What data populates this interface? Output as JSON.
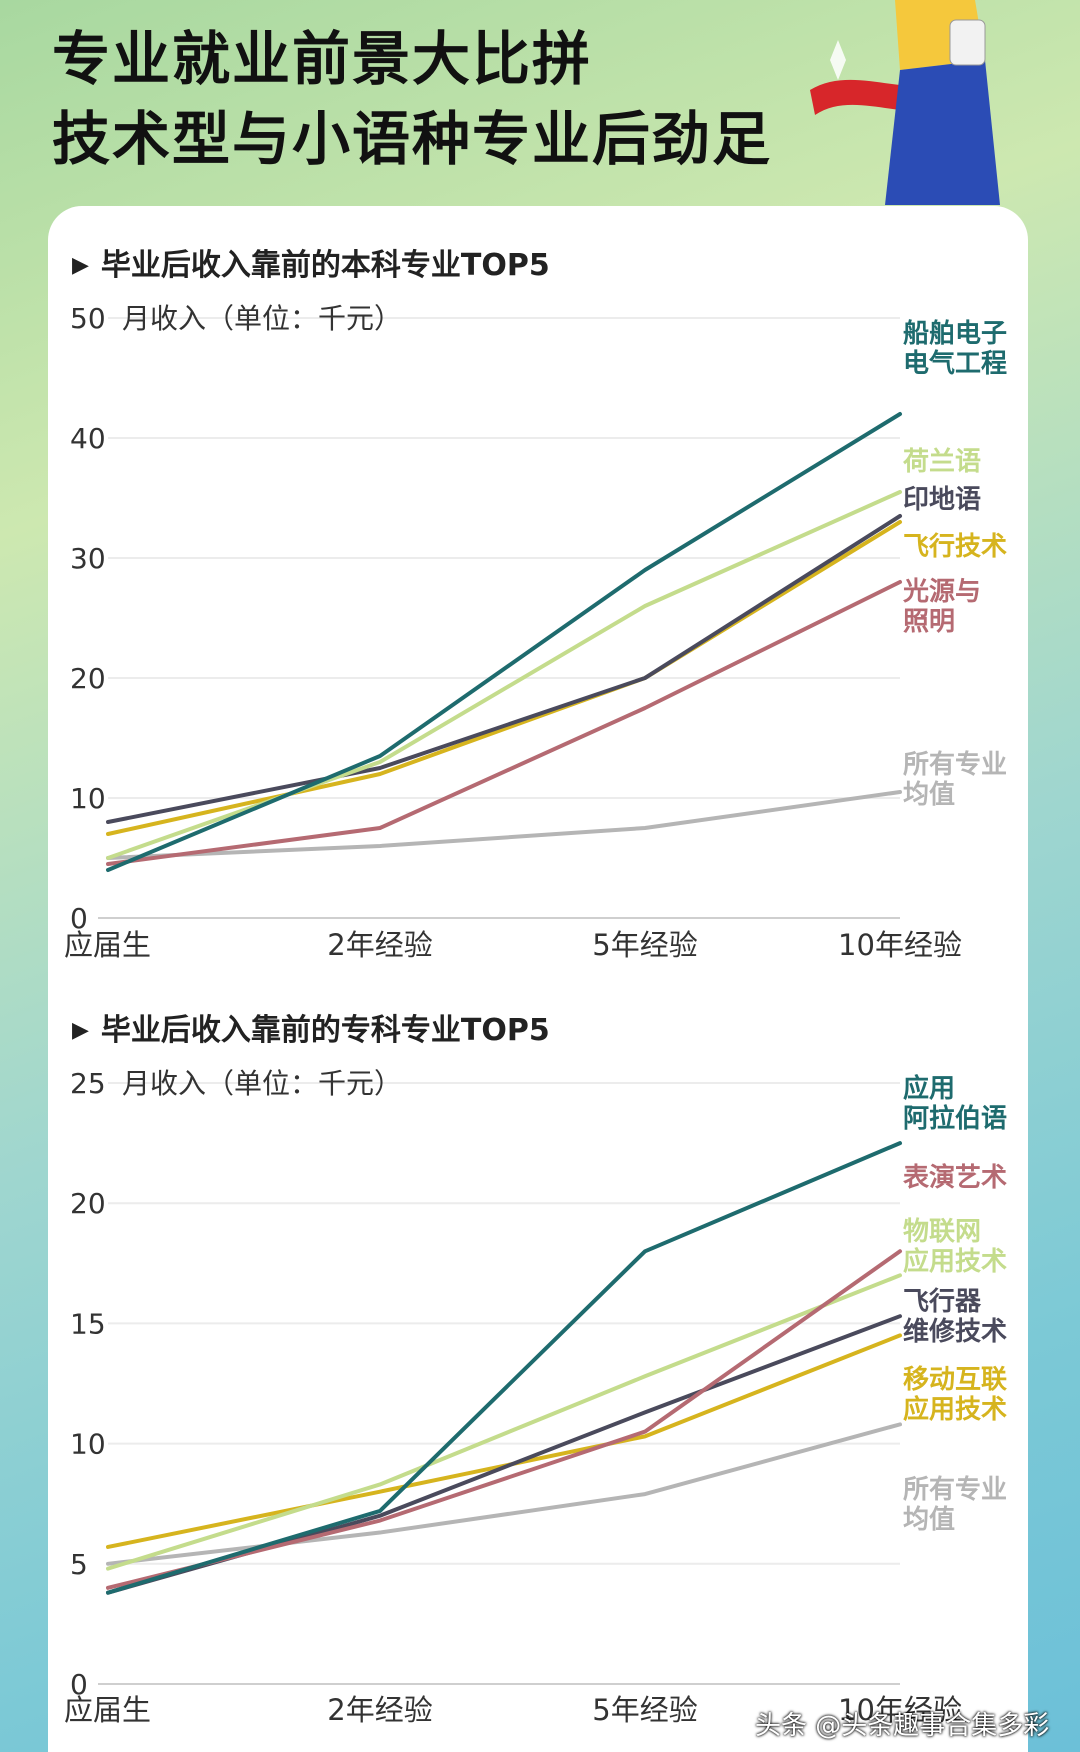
{
  "header": {
    "title_line1": "专业就业前景大比拼",
    "title_line2": "技术型与小语种专业后劲足"
  },
  "watermark": "头条 @头条趣事合集多彩",
  "chart_data": [
    {
      "type": "line",
      "title": "毕业后收入靠前的本科专业TOP5",
      "ylabel": "月收入（单位：千元）",
      "categories": [
        "应届生",
        "2年经验",
        "5年经验",
        "10年经验"
      ],
      "ylim": [
        0,
        50
      ],
      "yticks": [
        0,
        10,
        20,
        30,
        40,
        50
      ],
      "grid": true,
      "series": [
        {
          "name": "船舶电子电气工程",
          "label_lines": [
            "船舶电子",
            "电气工程"
          ],
          "color": "#1e6b6e",
          "values": [
            4,
            13.5,
            29,
            42
          ]
        },
        {
          "name": "荷兰语",
          "label_lines": [
            "荷兰语"
          ],
          "color": "#c4dc8c",
          "values": [
            5,
            13,
            26,
            35.5
          ]
        },
        {
          "name": "印地语",
          "label_lines": [
            "印地语"
          ],
          "color": "#4a4a5c",
          "values": [
            8,
            12.5,
            20,
            33.5
          ]
        },
        {
          "name": "飞行技术",
          "label_lines": [
            "飞行技术"
          ],
          "color": "#d6b41e",
          "values": [
            7,
            12,
            20,
            33
          ]
        },
        {
          "name": "光源与照明",
          "label_lines": [
            "光源与",
            "照明"
          ],
          "color": "#b56a72",
          "values": [
            4.5,
            7.5,
            17.5,
            28
          ]
        },
        {
          "name": "所有专业均值",
          "label_lines": [
            "所有专业",
            "均值"
          ],
          "color": "#b5b5b5",
          "values": [
            5,
            6,
            7.5,
            10.5
          ]
        }
      ]
    },
    {
      "type": "line",
      "title": "毕业后收入靠前的专科专业TOP5",
      "ylabel": "月收入（单位：千元）",
      "categories": [
        "应届生",
        "2年经验",
        "5年经验",
        "10年经验"
      ],
      "ylim": [
        0,
        25
      ],
      "yticks": [
        0,
        5,
        10,
        15,
        20,
        25
      ],
      "grid": true,
      "series": [
        {
          "name": "应用阿拉伯语",
          "label_lines": [
            "应用",
            "阿拉伯语"
          ],
          "color": "#1e6b6e",
          "values": [
            3.8,
            7.2,
            18,
            22.5
          ]
        },
        {
          "name": "表演艺术",
          "label_lines": [
            "表演艺术"
          ],
          "color": "#b56a72",
          "values": [
            4,
            6.8,
            10.5,
            18
          ]
        },
        {
          "name": "物联网应用技术",
          "label_lines": [
            "物联网",
            "应用技术"
          ],
          "color": "#c4dc8c",
          "values": [
            4.8,
            8.3,
            12.8,
            17
          ]
        },
        {
          "name": "飞行器维修技术",
          "label_lines": [
            "飞行器",
            "维修技术"
          ],
          "color": "#4a4a5c",
          "values": [
            3.8,
            7,
            11.3,
            15.3
          ]
        },
        {
          "name": "移动互联应用技术",
          "label_lines": [
            "移动互联",
            "应用技术"
          ],
          "color": "#d6b41e",
          "values": [
            5.7,
            8,
            10.3,
            14.5
          ]
        },
        {
          "name": "所有专业均值",
          "label_lines": [
            "所有专业",
            "均值"
          ],
          "color": "#b5b5b5",
          "values": [
            5,
            6.3,
            7.9,
            10.8
          ]
        }
      ]
    }
  ]
}
